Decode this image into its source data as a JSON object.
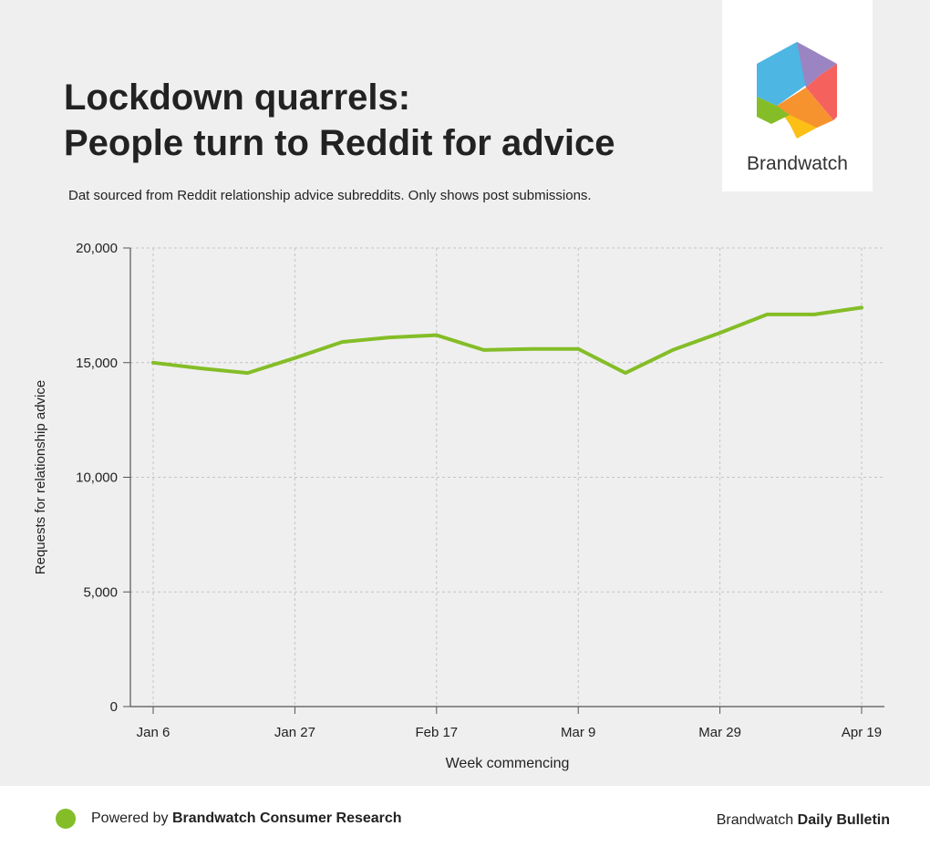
{
  "header": {
    "title_line1": "Lockdown quarrels:",
    "title_line2": "People turn to Reddit for advice",
    "subtitle": "Dat sourced from Reddit relationship advice subreddits. Only shows post submissions."
  },
  "logo": {
    "name": "Brandwatch",
    "colors": [
      "#4db6e2",
      "#9b84c2",
      "#f5625d",
      "#f7932f",
      "#fbbf16",
      "#84bd27"
    ]
  },
  "chart_data": {
    "type": "line",
    "title": "",
    "xlabel": "Week commencing",
    "ylabel": "Requests for relationship advice",
    "ylim": [
      0,
      20000
    ],
    "yticks": [
      0,
      5000,
      10000,
      15000,
      20000
    ],
    "ytick_labels": [
      "0",
      "5,000",
      "10,000",
      "15,000",
      "20,000"
    ],
    "x": [
      "Jan 6",
      "Jan 13",
      "Jan 20",
      "Jan 27",
      "Feb 3",
      "Feb 10",
      "Feb 17",
      "Feb 24",
      "Mar 2",
      "Mar 9",
      "Mar 16",
      "Mar 23",
      "Mar 29",
      "Apr 5",
      "Apr 12",
      "Apr 19"
    ],
    "xtick_labels": [
      "Jan 6",
      "Jan 27",
      "Feb 17",
      "Mar 9",
      "Mar 29",
      "Apr 19"
    ],
    "grid": true,
    "line_color": "#84bd27",
    "series": [
      {
        "values": [
          15000,
          14750,
          14550,
          15200,
          15900,
          16100,
          16200,
          15550,
          15600,
          15600,
          14550,
          15550,
          16300,
          17100,
          17100,
          17400
        ]
      }
    ]
  },
  "footer": {
    "left_prefix": "Powered by ",
    "left_bold": "Brandwatch Consumer Research",
    "right_prefix": "Brandwatch ",
    "right_bold": "Daily Bulletin",
    "dot_color": "#84bd27"
  }
}
